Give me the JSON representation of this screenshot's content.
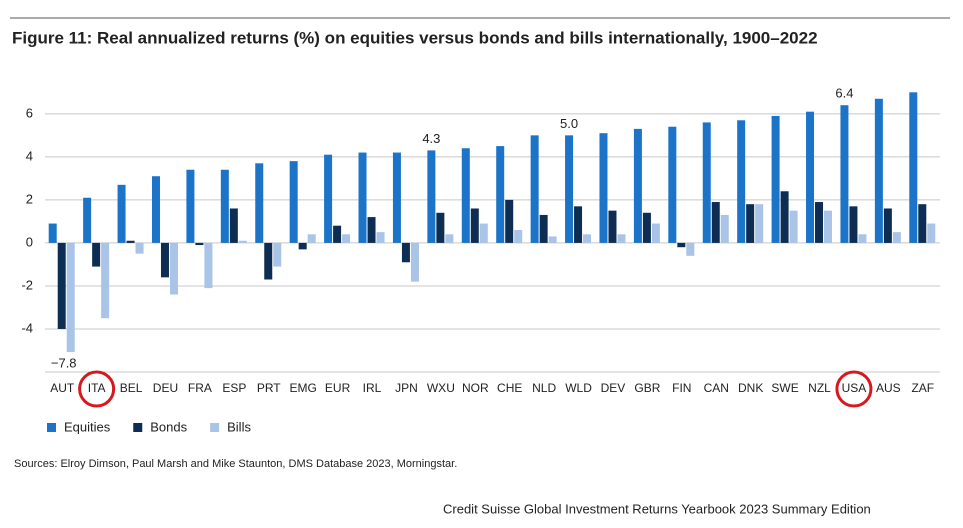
{
  "chart_data": {
    "type": "bar",
    "title": "Figure 11: Real annualized returns (%) on equities versus bonds and bills internationally, 1900–2022",
    "categories": [
      "AUT",
      "ITA",
      "BEL",
      "DEU",
      "FRA",
      "ESP",
      "PRT",
      "EMG",
      "EUR",
      "IRL",
      "JPN",
      "WXU",
      "NOR",
      "CHE",
      "NLD",
      "WLD",
      "DEV",
      "GBR",
      "FIN",
      "CAN",
      "DNK",
      "SWE",
      "NZL",
      "USA",
      "AUS",
      "ZAF"
    ],
    "series": [
      {
        "name": "Equities",
        "color": "#1b74c8",
        "values": [
          0.9,
          2.1,
          2.7,
          3.1,
          3.4,
          3.4,
          3.7,
          3.8,
          4.1,
          4.2,
          4.2,
          4.3,
          4.4,
          4.5,
          5.0,
          5.0,
          5.1,
          5.3,
          5.4,
          5.6,
          5.7,
          5.9,
          6.1,
          6.4,
          6.7,
          7.0
        ],
        "value_labels": [
          null,
          null,
          null,
          null,
          null,
          null,
          null,
          null,
          null,
          null,
          null,
          "4.3",
          null,
          null,
          null,
          "5.0",
          null,
          null,
          null,
          null,
          null,
          null,
          null,
          "6.4",
          null,
          null
        ]
      },
      {
        "name": "Bonds",
        "color": "#0d2d52",
        "values": [
          -4.0,
          -1.1,
          0.1,
          -1.6,
          -0.1,
          1.6,
          -1.7,
          -0.3,
          0.8,
          1.2,
          -0.9,
          1.4,
          1.6,
          2.0,
          1.3,
          1.7,
          1.5,
          1.4,
          -0.2,
          1.9,
          1.8,
          2.4,
          1.9,
          1.7,
          1.6,
          1.8
        ]
      },
      {
        "name": "Bills",
        "color": "#a9c4e6",
        "values": [
          -7.8,
          -3.5,
          -0.5,
          -2.4,
          -2.1,
          0.1,
          -1.1,
          0.4,
          0.4,
          0.5,
          -1.8,
          0.4,
          0.9,
          0.6,
          0.3,
          0.4,
          0.4,
          0.9,
          -0.6,
          1.3,
          1.8,
          1.5,
          1.5,
          0.4,
          0.5,
          0.9
        ],
        "value_labels": [
          "−7.8",
          null,
          null,
          null,
          null,
          null,
          null,
          null,
          null,
          null,
          null,
          null,
          null,
          null,
          null,
          null,
          null,
          null,
          null,
          null,
          null,
          null,
          null,
          null,
          null,
          null
        ]
      }
    ],
    "highlighted": [
      1,
      23
    ],
    "ylim": [
      -6,
      7.2
    ],
    "yticks": [
      -4,
      -2,
      0,
      2,
      4,
      6
    ],
    "grid": true,
    "source": "Sources: Elroy Dimson, Paul Marsh and Mike Staunton, DMS Database 2023, Morningstar.",
    "footer": "Credit Suisse Global Investment Returns Yearbook 2023 Summary Edition"
  }
}
